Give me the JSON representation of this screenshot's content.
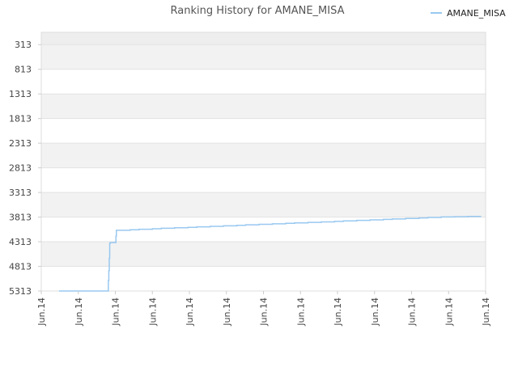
{
  "chart_data": {
    "type": "line",
    "title": "Ranking History for AMANE_MISA",
    "xlabel": "",
    "ylabel": "",
    "y_inverted": true,
    "ylim": [
      5313,
      63
    ],
    "y_ticks": [
      313,
      813,
      1313,
      1813,
      2313,
      2813,
      3313,
      3813,
      4313,
      4813,
      5313
    ],
    "x_ticks": [
      "Jun.14",
      "Jun.14",
      "Jun.14",
      "Jun.14",
      "Jun.14",
      "Jun.14",
      "Jun.14",
      "Jun.14",
      "Jun.14",
      "Jun.14",
      "Jun.14",
      "Jun.14",
      "Jun.14"
    ],
    "grid": true,
    "legend_position": "top-right",
    "series": [
      {
        "name": "AMANE_MISA",
        "color": "#99c8f0",
        "x": [
          0.04,
          0.15,
          0.151,
          0.152,
          0.153,
          0.154,
          0.155,
          0.168,
          0.169,
          0.17,
          0.2,
          0.22,
          0.25,
          0.27,
          0.3,
          0.33,
          0.35,
          0.38,
          0.41,
          0.44,
          0.46,
          0.49,
          0.52,
          0.55,
          0.57,
          0.6,
          0.63,
          0.66,
          0.68,
          0.71,
          0.74,
          0.77,
          0.79,
          0.82,
          0.85,
          0.87,
          0.9,
          0.93,
          0.96,
          0.99
        ],
        "values": [
          5313,
          5313,
          5100,
          4900,
          4650,
          4350,
          4330,
          4200,
          4080,
          4080,
          4070,
          4060,
          4050,
          4040,
          4030,
          4020,
          4010,
          4000,
          3990,
          3980,
          3970,
          3960,
          3950,
          3940,
          3930,
          3920,
          3910,
          3900,
          3890,
          3880,
          3870,
          3860,
          3850,
          3840,
          3830,
          3820,
          3810,
          3805,
          3800,
          3800
        ]
      }
    ]
  }
}
